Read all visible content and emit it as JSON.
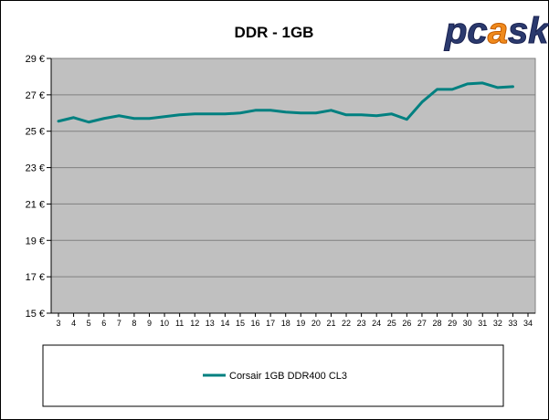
{
  "chart_data": {
    "type": "line",
    "title": "DDR - 1GB",
    "xlabel": "",
    "ylabel": "",
    "logo": "pcask",
    "x": [
      3,
      4,
      5,
      6,
      7,
      8,
      9,
      10,
      11,
      12,
      13,
      14,
      15,
      16,
      17,
      18,
      19,
      20,
      21,
      22,
      23,
      24,
      25,
      26,
      27,
      28,
      29,
      30,
      31,
      32,
      33
    ],
    "x_ticks": [
      3,
      4,
      5,
      6,
      7,
      8,
      9,
      10,
      11,
      12,
      13,
      14,
      15,
      16,
      17,
      18,
      19,
      20,
      21,
      22,
      23,
      24,
      25,
      26,
      27,
      28,
      29,
      30,
      31,
      32,
      33,
      34
    ],
    "xlim": [
      3,
      34
    ],
    "ylim": [
      15,
      29
    ],
    "y_ticks": [
      "15 €",
      "17 €",
      "19 €",
      "21 €",
      "23 €",
      "25 €",
      "27 €",
      "29 €"
    ],
    "grid": "horizontal",
    "plot_background": "#c0c0c0",
    "legend_position": "bottom",
    "series": [
      {
        "name": "Corsair 1GB DDR400 CL3",
        "color": "#008080",
        "values": [
          25.55,
          25.75,
          25.5,
          25.7,
          25.85,
          25.7,
          25.7,
          25.8,
          25.9,
          25.95,
          25.95,
          25.95,
          26.0,
          26.15,
          26.15,
          26.05,
          26.0,
          26.0,
          26.15,
          25.9,
          25.9,
          25.85,
          25.95,
          25.65,
          26.6,
          27.3,
          27.3,
          27.6,
          27.65,
          27.4,
          27.45
        ]
      }
    ]
  }
}
